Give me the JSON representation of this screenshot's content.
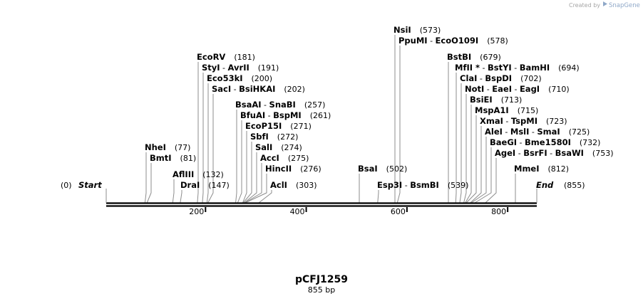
{
  "credit": {
    "created_by": "Created by",
    "brand": "SnapGene"
  },
  "plasmid": {
    "name": "pCFJ1259",
    "length_label": "855 bp",
    "length": 855
  },
  "terminals": {
    "start_label": "Start",
    "start_pos": "(0)",
    "end_label": "End",
    "end_pos": "(855)"
  },
  "ticks": [
    {
      "value": 200,
      "label": "200"
    },
    {
      "value": 400,
      "label": "400"
    },
    {
      "value": 600,
      "label": "600"
    },
    {
      "value": 800,
      "label": "800"
    }
  ],
  "sites": [
    {
      "names": [
        "NsiI"
      ],
      "pos": 573,
      "pos_label": "(573)"
    },
    {
      "names": [
        "PpuMI",
        "EcoO109I"
      ],
      "pos": 578,
      "pos_label": "(578)"
    },
    {
      "names": [
        "EcoRV"
      ],
      "pos": 181,
      "pos_label": "(181)"
    },
    {
      "names": [
        "BstBI"
      ],
      "pos": 679,
      "pos_label": "(679)"
    },
    {
      "names": [
        "StyI",
        "AvrII"
      ],
      "pos": 191,
      "pos_label": "(191)"
    },
    {
      "names": [
        "MfII *",
        "BstYI",
        "BamHI"
      ],
      "pos": 694,
      "pos_label": "(694)"
    },
    {
      "names": [
        "Eco53kI"
      ],
      "pos": 200,
      "pos_label": "(200)"
    },
    {
      "names": [
        "ClaI",
        "BspDI"
      ],
      "pos": 702,
      "pos_label": "(702)"
    },
    {
      "names": [
        "SacI",
        "BsiHKAI"
      ],
      "pos": 202,
      "pos_label": "(202)"
    },
    {
      "names": [
        "NotI",
        "EaeI",
        "EagI"
      ],
      "pos": 710,
      "pos_label": "(710)"
    },
    {
      "names": [
        "BsiEI"
      ],
      "pos": 713,
      "pos_label": "(713)"
    },
    {
      "names": [
        "BsaAI",
        "SnaBI"
      ],
      "pos": 257,
      "pos_label": "(257)"
    },
    {
      "names": [
        "MspA1I"
      ],
      "pos": 715,
      "pos_label": "(715)"
    },
    {
      "names": [
        "BfuAI",
        "BspMI"
      ],
      "pos": 261,
      "pos_label": "(261)"
    },
    {
      "names": [
        "XmaI",
        "TspMI"
      ],
      "pos": 723,
      "pos_label": "(723)"
    },
    {
      "names": [
        "EcoP15I"
      ],
      "pos": 271,
      "pos_label": "(271)"
    },
    {
      "names": [
        "AleI",
        "MslI",
        "SmaI"
      ],
      "pos": 725,
      "pos_label": "(725)"
    },
    {
      "names": [
        "SbfI"
      ],
      "pos": 272,
      "pos_label": "(272)"
    },
    {
      "names": [
        "BaeGI",
        "Bme1580I"
      ],
      "pos": 732,
      "pos_label": "(732)"
    },
    {
      "names": [
        "NheI"
      ],
      "pos": 77,
      "pos_label": "(77)"
    },
    {
      "names": [
        "SalI"
      ],
      "pos": 274,
      "pos_label": "(274)"
    },
    {
      "names": [
        "AgeI",
        "BsrFI",
        "BsaWI"
      ],
      "pos": 753,
      "pos_label": "(753)"
    },
    {
      "names": [
        "BmtI"
      ],
      "pos": 81,
      "pos_label": "(81)"
    },
    {
      "names": [
        "AccI"
      ],
      "pos": 275,
      "pos_label": "(275)"
    },
    {
      "names": [
        "HincII"
      ],
      "pos": 276,
      "pos_label": "(276)"
    },
    {
      "names": [
        "BsaI"
      ],
      "pos": 502,
      "pos_label": "(502)"
    },
    {
      "names": [
        "MmeI"
      ],
      "pos": 812,
      "pos_label": "(812)"
    },
    {
      "names": [
        "AflIII"
      ],
      "pos": 132,
      "pos_label": "(132)"
    },
    {
      "names": [
        "DraI"
      ],
      "pos": 147,
      "pos_label": "(147)"
    },
    {
      "names": [
        "AclI"
      ],
      "pos": 303,
      "pos_label": "(303)"
    },
    {
      "names": [
        "Esp3I",
        "BsmBI"
      ],
      "pos": 539,
      "pos_label": "(539)"
    }
  ]
}
